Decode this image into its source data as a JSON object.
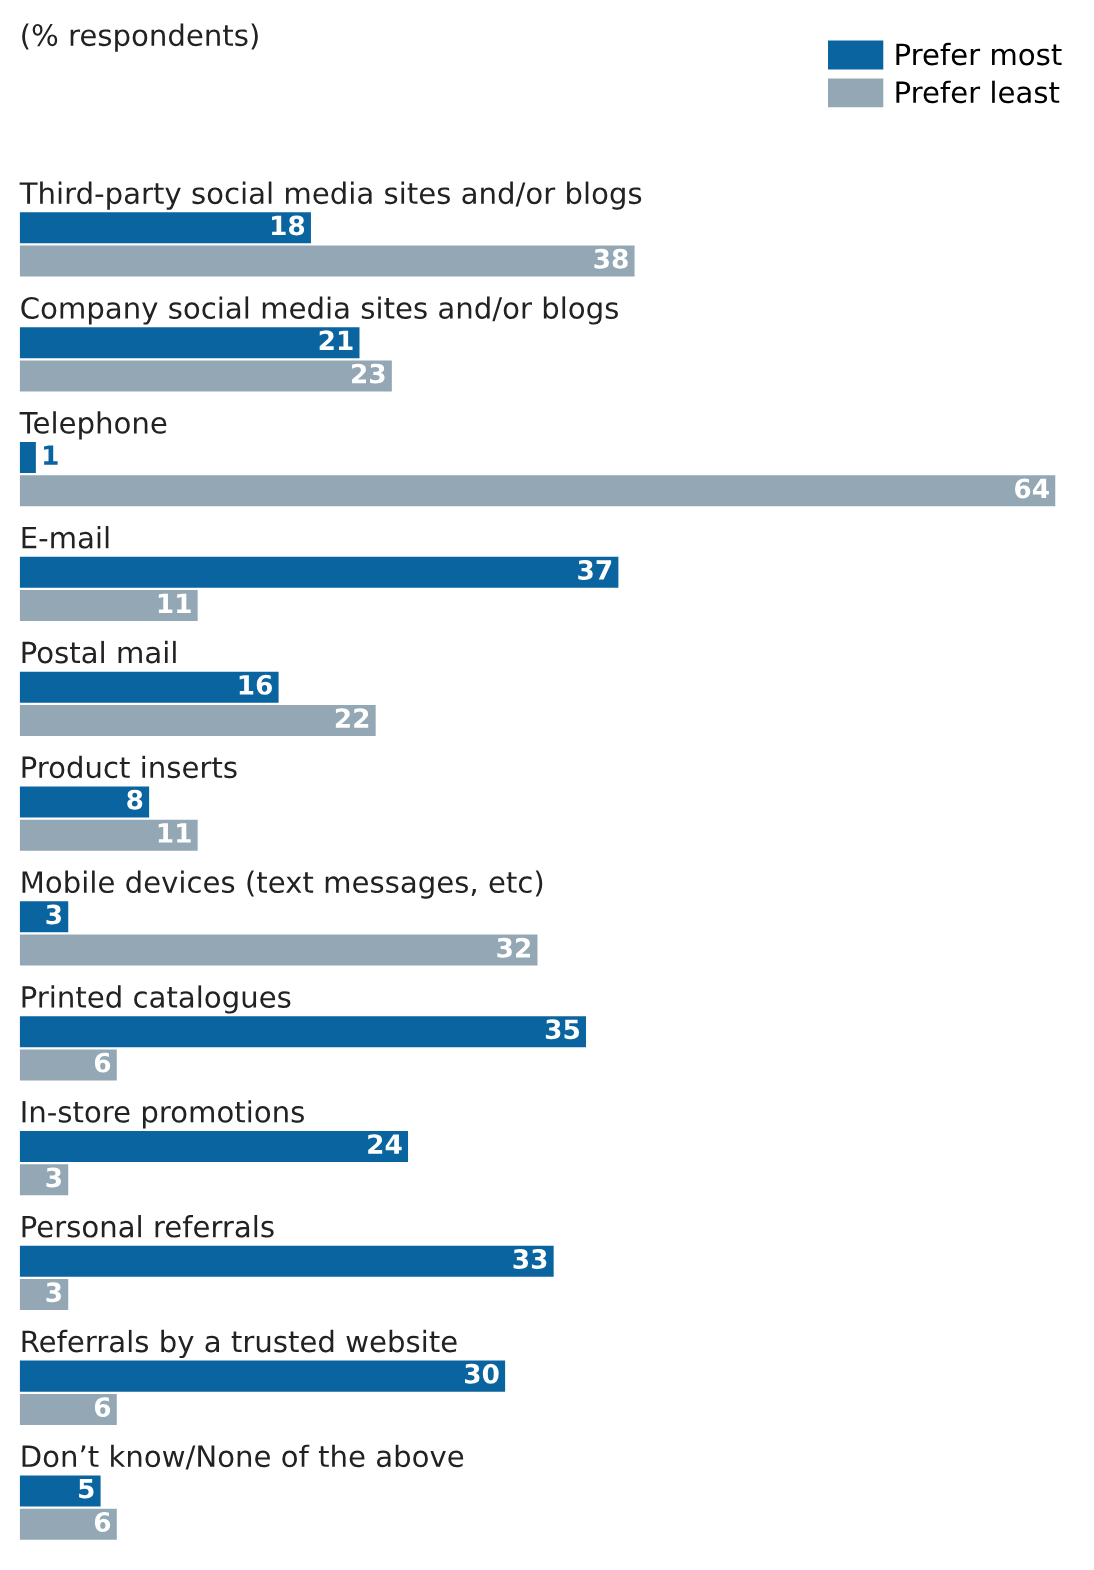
{
  "chart_data": {
    "type": "bar",
    "orientation": "horizontal",
    "subtitle": "(% respondents)",
    "categories": [
      "Third-party social media sites and/or blogs",
      "Company social media sites and/or blogs",
      "Telephone",
      "E-mail",
      "Postal mail",
      "Product inserts",
      "Mobile devices (text messages, etc)",
      "Printed catalogues",
      "In-store promotions",
      "Personal referrals",
      "Referrals by a trusted website",
      "Don’t know/None of the above"
    ],
    "series": [
      {
        "name": "Prefer most",
        "color": "#0a64a0",
        "values": [
          18,
          21,
          1,
          37,
          16,
          8,
          3,
          35,
          24,
          33,
          30,
          5
        ]
      },
      {
        "name": "Prefer least",
        "color": "#93a8b4",
        "values": [
          38,
          23,
          64,
          11,
          22,
          11,
          32,
          6,
          3,
          3,
          6,
          6
        ]
      }
    ],
    "data_labels": true,
    "legend": "top right"
  }
}
